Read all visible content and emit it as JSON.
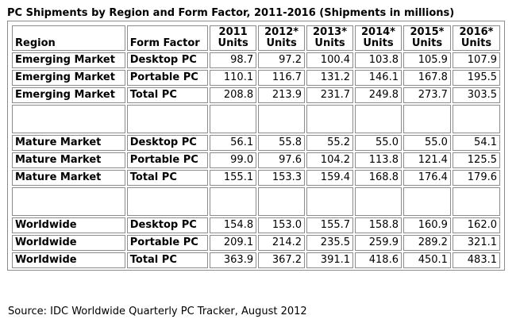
{
  "title": "PC Shipments by Region and Form Factor, 2011-2016 (Shipments in millions)",
  "table": {
    "header": {
      "region": "Region",
      "form_factor": "Form Factor",
      "years": [
        {
          "year": "2011",
          "unit": "Units"
        },
        {
          "year": "2012*",
          "unit": "Units"
        },
        {
          "year": "2013*",
          "unit": "Units"
        },
        {
          "year": "2014*",
          "unit": "Units"
        },
        {
          "year": "2015*",
          "unit": "Units"
        },
        {
          "year": "2016*",
          "unit": "Units"
        }
      ]
    },
    "rows": [
      {
        "region": "Emerging Market",
        "form": "Desktop PC",
        "values": [
          "98.7",
          "97.2",
          "100.4",
          "103.8",
          "105.9",
          "107.9"
        ]
      },
      {
        "region": "Emerging Market",
        "form": "Portable PC",
        "values": [
          "110.1",
          "116.7",
          "131.2",
          "146.1",
          "167.8",
          "195.5"
        ]
      },
      {
        "region": "Emerging Market",
        "form": "Total PC",
        "values": [
          "208.8",
          "213.9",
          "231.7",
          "249.8",
          "273.7",
          "303.5"
        ]
      },
      {
        "region": "Mature Market",
        "form": "Desktop PC",
        "values": [
          "56.1",
          "55.8",
          "55.2",
          "55.0",
          "55.0",
          "54.1"
        ]
      },
      {
        "region": "Mature Market",
        "form": "Portable PC",
        "values": [
          "99.0",
          "97.6",
          "104.2",
          "113.8",
          "121.4",
          "125.5"
        ]
      },
      {
        "region": "Mature Market",
        "form": "Total PC",
        "values": [
          "155.1",
          "153.3",
          "159.4",
          "168.8",
          "176.4",
          "179.6"
        ]
      },
      {
        "region": "Worldwide",
        "form": "Desktop PC",
        "values": [
          "154.8",
          "153.0",
          "155.7",
          "158.8",
          "160.9",
          "162.0"
        ]
      },
      {
        "region": "Worldwide",
        "form": "Portable PC",
        "values": [
          "209.1",
          "214.2",
          "235.5",
          "259.9",
          "289.2",
          "321.1"
        ]
      },
      {
        "region": "Worldwide",
        "form": "Total PC",
        "values": [
          "363.9",
          "367.2",
          "391.1",
          "418.6",
          "450.1",
          "483.1"
        ]
      }
    ]
  },
  "source": "Source: IDC Worldwide Quarterly PC Tracker, August 2012",
  "colors": {
    "border": "#8c8c8c",
    "text": "#000000",
    "background": "#ffffff"
  }
}
